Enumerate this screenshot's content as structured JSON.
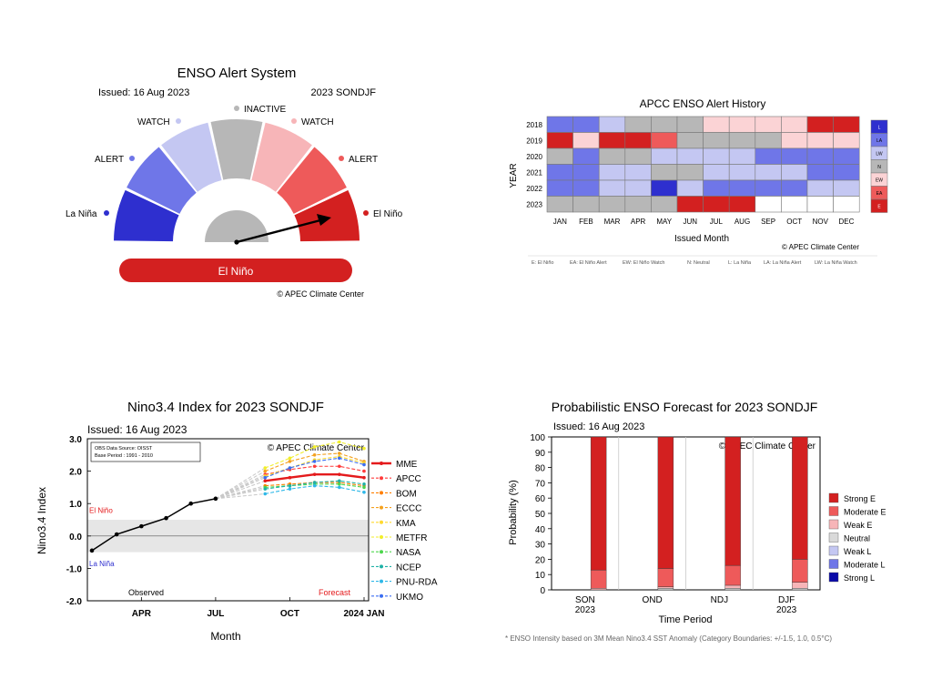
{
  "colors": {
    "strong_red": "#d32020",
    "mid_red": "#ee5a5a",
    "light_red": "#f7b5b8",
    "pale_red": "#fbd3d5",
    "gray": "#b7b7b7",
    "pale_blue": "#c4c7f2",
    "mid_blue": "#6f76e8",
    "strong_blue": "#2e2fcf",
    "dark_blue": "#0a0aa8"
  },
  "alert_system": {
    "title": "ENSO Alert System",
    "issued": "Issued: 16 Aug 2023",
    "season": "2023 SONDJF",
    "labels": {
      "la_nina": "La Niña",
      "alert_left": "ALERT",
      "watch_left": "WATCH",
      "inactive": "INACTIVE",
      "watch_right": "WATCH",
      "alert_right": "ALERT",
      "el_nino": "El Niño"
    },
    "status": "El Niño",
    "credit": "© APEC Climate Center"
  },
  "history": {
    "title": "APCC ENSO Alert History",
    "credit": "© APEC Climate Center",
    "legend_codes": [
      "L",
      "LA",
      "LW",
      "N",
      "EW",
      "EA",
      "E"
    ],
    "footnote": [
      "E: El Niño",
      "EA: El Niño Alert",
      "EW: El Niño Watch",
      "N: Neutral",
      "L: La Niña",
      "LA: La Niña Alert",
      "LW: La Niña Watch"
    ]
  },
  "nino34": {
    "title": "Nino3.4 Index for 2023 SONDJF",
    "issued": "Issued: 16 Aug 2023",
    "credit": "© APEC Climate Center",
    "source_line1": "OBS Data Source: OISST",
    "source_line2": "Base Period : 1991 - 2010",
    "el_nino_label": "El Niño",
    "la_nina_label": "La Niña",
    "observed_label": "Observed",
    "forecast_label": "Forecast",
    "model_colors": [
      "#e41a1c",
      "#ff3b3b",
      "#ff7f00",
      "#f4a11f",
      "#ffd92f",
      "#f1ee2a",
      "#4dd64d",
      "#1fb1a6",
      "#2fb8e8",
      "#3b6ef2"
    ]
  },
  "prob": {
    "title": "Probabilistic ENSO Forecast for 2023 SONDJF",
    "issued": "Issued: 16 Aug 2023",
    "credit": "© APEC Climate Center",
    "footnote": "* ENSO Intensity based on 3M Mean Nino3.4 SST Anomaly (Category Boundaries: +/-1.5, 1.0, 0.5°C)",
    "category_colors": [
      "#d32020",
      "#ee5a5a",
      "#f7b5b8",
      "#d9d9d9",
      "#c4c7f2",
      "#6f76e8",
      "#0a0aa8"
    ]
  },
  "chart_data": [
    {
      "type": "other",
      "title": "ENSO Alert System",
      "categories": [
        "La Niña",
        "ALERT",
        "WATCH",
        "INACTIVE",
        "WATCH",
        "ALERT",
        "El Niño"
      ],
      "current": "El Niño"
    },
    {
      "type": "heatmap",
      "title": "APCC ENSO Alert History",
      "xlabel": "Issued Month",
      "ylabel": "YEAR",
      "x": [
        "JAN",
        "FEB",
        "MAR",
        "APR",
        "MAY",
        "JUN",
        "JUL",
        "AUG",
        "SEP",
        "OCT",
        "NOV",
        "DEC"
      ],
      "y": [
        "2018",
        "2019",
        "2020",
        "2021",
        "2022",
        "2023"
      ],
      "values": [
        [
          "LA",
          "LA",
          "LW",
          "N",
          "N",
          "N",
          "EW",
          "EW",
          "EW",
          "EW",
          "E",
          "E"
        ],
        [
          "E",
          "EW",
          "E",
          "E",
          "EA",
          "N",
          "N",
          "N",
          "N",
          "EW",
          "EW",
          "EW"
        ],
        [
          "N",
          "LA",
          "N",
          "N",
          "LW",
          "LW",
          "LW",
          "LW",
          "LA",
          "LA",
          "LA",
          "LA"
        ],
        [
          "LA",
          "LA",
          "LW",
          "LW",
          "N",
          "N",
          "LW",
          "LW",
          "LW",
          "LW",
          "LA",
          "LA"
        ],
        [
          "LA",
          "LA",
          "LW",
          "LW",
          "L",
          "LW",
          "LA",
          "LA",
          "LA",
          "LA",
          "LW",
          "LW"
        ],
        [
          "N",
          "N",
          "N",
          "N",
          "N",
          "E",
          "E",
          "E",
          null,
          null,
          null,
          null
        ]
      ]
    },
    {
      "type": "line",
      "title": "Nino3.4 Index for 2023 SONDJF",
      "xlabel": "Month",
      "ylabel": "Nino3.4 Index",
      "ylim": [
        -2.0,
        3.0
      ],
      "yticks": [
        "3.0",
        "2.0",
        "1.0",
        "0.0",
        "-1.0",
        "-2.0"
      ],
      "x": [
        "FEB",
        "MAR",
        "APR",
        "MAY",
        "JUN",
        "JUL",
        "AUG",
        "SEP",
        "OCT",
        "NOV",
        "DEC",
        "JAN"
      ],
      "xtick_labels": [
        "APR",
        "JUL",
        "OCT",
        "2024 JAN"
      ],
      "series": [
        {
          "name": "Observed",
          "x": [
            "FEB",
            "MAR",
            "APR",
            "MAY",
            "JUN",
            "JUL"
          ],
          "values": [
            -0.45,
            0.05,
            0.3,
            0.55,
            1.0,
            1.15
          ]
        },
        {
          "name": "MME",
          "x": [
            "SEP",
            "OCT",
            "NOV",
            "DEC",
            "JAN"
          ],
          "values": [
            1.7,
            1.8,
            1.9,
            1.9,
            1.8
          ]
        },
        {
          "name": "APCC",
          "x": [
            "SEP",
            "OCT",
            "NOV",
            "DEC",
            "JAN"
          ],
          "values": [
            1.9,
            2.05,
            2.15,
            2.15,
            2.0
          ]
        },
        {
          "name": "BOM",
          "x": [
            "SEP",
            "OCT",
            "NOV",
            "DEC",
            "JAN"
          ],
          "values": [
            1.55,
            1.6,
            1.65,
            1.65,
            1.55
          ]
        },
        {
          "name": "ECCC",
          "x": [
            "SEP",
            "OCT",
            "NOV",
            "DEC",
            "JAN"
          ],
          "values": [
            2.0,
            2.3,
            2.5,
            2.55,
            2.3
          ]
        },
        {
          "name": "KMA",
          "x": [
            "SEP",
            "OCT",
            "NOV",
            "DEC",
            "JAN"
          ],
          "values": [
            1.85,
            2.1,
            2.35,
            2.45,
            2.25
          ]
        },
        {
          "name": "METFR",
          "x": [
            "SEP",
            "OCT",
            "NOV",
            "DEC",
            "JAN"
          ],
          "values": [
            2.1,
            2.4,
            2.75,
            2.9,
            2.7
          ]
        },
        {
          "name": "NASA",
          "x": [
            "SEP",
            "OCT",
            "NOV",
            "DEC",
            "JAN"
          ],
          "values": [
            1.5,
            1.55,
            1.6,
            1.6,
            1.5
          ]
        },
        {
          "name": "NCEP",
          "x": [
            "SEP",
            "OCT",
            "NOV",
            "DEC",
            "JAN"
          ],
          "values": [
            1.45,
            1.55,
            1.65,
            1.7,
            1.6
          ]
        },
        {
          "name": "PNU-RDA",
          "x": [
            "SEP",
            "OCT",
            "NOV",
            "DEC",
            "JAN"
          ],
          "values": [
            1.3,
            1.45,
            1.55,
            1.5,
            1.35
          ]
        },
        {
          "name": "UKMO",
          "x": [
            "SEP",
            "OCT",
            "NOV",
            "DEC",
            "JAN"
          ],
          "values": [
            1.8,
            2.1,
            2.3,
            2.4,
            2.2
          ]
        }
      ]
    },
    {
      "type": "bar",
      "title": "Probabilistic ENSO Forecast for 2023 SONDJF",
      "xlabel": "Time Period",
      "ylabel": "Probability (%)",
      "ylim": [
        0,
        100
      ],
      "yticks": [
        "0",
        "10",
        "20",
        "30",
        "40",
        "50",
        "60",
        "70",
        "80",
        "90",
        "100"
      ],
      "categories": [
        "SON 2023",
        "OND",
        "NDJ",
        "DJF 2023"
      ],
      "series": [
        {
          "name": "Strong E",
          "values": [
            87,
            86,
            84,
            80
          ]
        },
        {
          "name": "Moderate E",
          "values": [
            12,
            12,
            13,
            15
          ]
        },
        {
          "name": "Weak E",
          "values": [
            1,
            1,
            2,
            4
          ]
        },
        {
          "name": "Neutral",
          "values": [
            0,
            1,
            1,
            1
          ]
        },
        {
          "name": "Weak L",
          "values": [
            0,
            0,
            0,
            0
          ]
        },
        {
          "name": "Moderate L",
          "values": [
            0,
            0,
            0,
            0
          ]
        },
        {
          "name": "Strong L",
          "values": [
            0,
            0,
            0,
            0
          ]
        }
      ]
    }
  ]
}
